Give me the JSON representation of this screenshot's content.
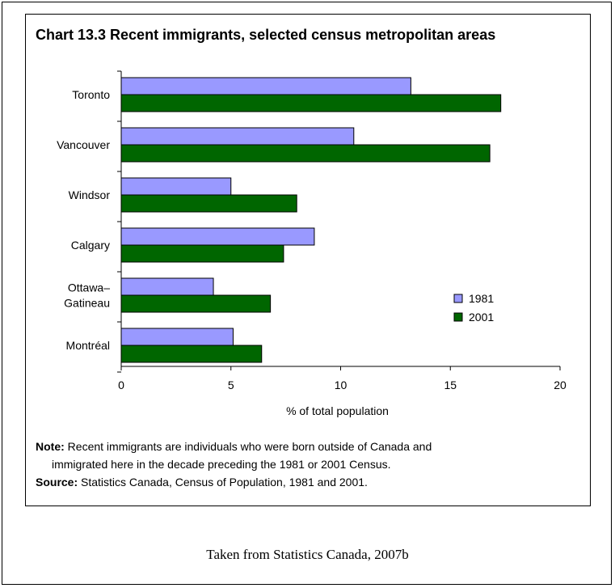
{
  "chart_data": {
    "type": "bar",
    "orientation": "horizontal",
    "title": "Chart 13.3  Recent immigrants, selected census metropolitan areas",
    "categories": [
      "Toronto",
      "Vancouver",
      "Windsor",
      "Calgary",
      "Ottawa–Gatineau",
      "Montréal"
    ],
    "category_lines": [
      [
        "Toronto"
      ],
      [
        "Vancouver"
      ],
      [
        "Windsor"
      ],
      [
        "Calgary"
      ],
      [
        "Ottawa–",
        "Gatineau"
      ],
      [
        "Montréal"
      ]
    ],
    "series": [
      {
        "name": "1981",
        "color": "#9999ff",
        "values": [
          13.2,
          10.6,
          5.0,
          8.8,
          4.2,
          5.1
        ]
      },
      {
        "name": "2001",
        "color": "#006600",
        "values": [
          17.3,
          16.8,
          8.0,
          7.4,
          6.8,
          6.4
        ]
      }
    ],
    "xlabel": "% of total population",
    "ylabel": "",
    "xlim": [
      0,
      20
    ],
    "xticks": [
      0,
      5,
      10,
      15,
      20
    ],
    "grid": false,
    "legend_position": "right"
  },
  "notes": {
    "note_label": "Note:",
    "note_line1": "Recent immigrants are individuals who were born outside of Canada and",
    "note_line2": "immigrated here in the decade preceding the 1981 or 2001 Census.",
    "source_label": "Source:",
    "source_text": "Statistics Canada, Census of Population, 1981 and 2001."
  },
  "caption": "Taken from Statistics Canada, 2007b"
}
